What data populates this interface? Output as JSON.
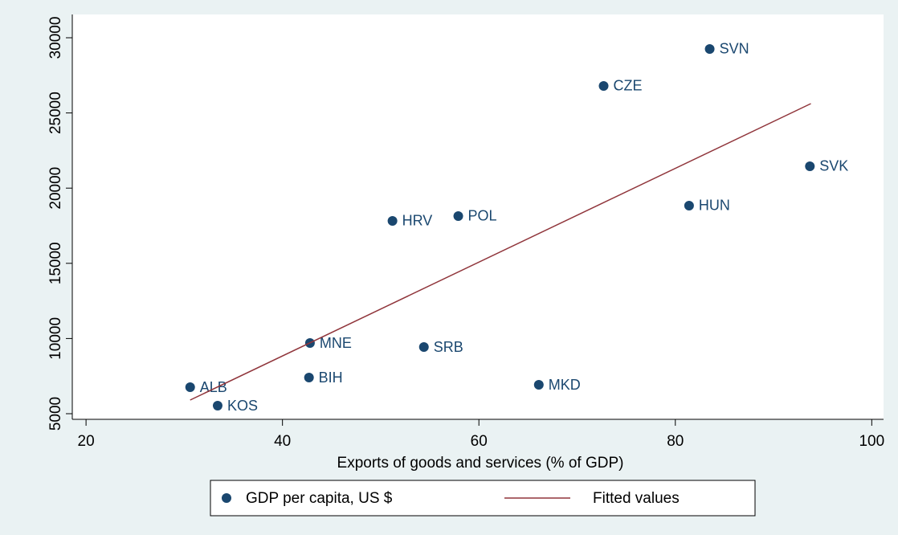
{
  "chart_data": {
    "type": "scatter",
    "xlabel": "Exports of goods and services (% of GDP)",
    "xlim": [
      18.6,
      101.2
    ],
    "xticks": [
      20,
      40,
      60,
      80,
      100
    ],
    "ylim": [
      4626,
      31549
    ],
    "yticks": [
      5000,
      10000,
      15000,
      20000,
      25000,
      30000
    ],
    "legend": "bottom",
    "series": [
      {
        "name": "GDP per capita, US $",
        "type": "scatter",
        "color": "#1a476f",
        "x": [
          83.5,
          72.7,
          93.7,
          81.4,
          57.9,
          51.2,
          42.8,
          54.4,
          42.7,
          66.1,
          30.6,
          33.4
        ],
        "values": [
          29252,
          26795,
          21453,
          18836,
          18141,
          17821,
          9700,
          9433,
          7403,
          6922,
          6762,
          5534
        ],
        "labels": [
          "SVN",
          "CZE",
          "SVK",
          "HUN",
          "POL",
          "HRV",
          "MNE",
          "SRB",
          "BIH",
          "MKD",
          "ALB",
          "KOS"
        ]
      },
      {
        "name": "Fitted values",
        "type": "line",
        "color": "#90353b",
        "x": [
          30.6,
          93.8
        ],
        "values": [
          5908,
          25620
        ]
      }
    ]
  }
}
